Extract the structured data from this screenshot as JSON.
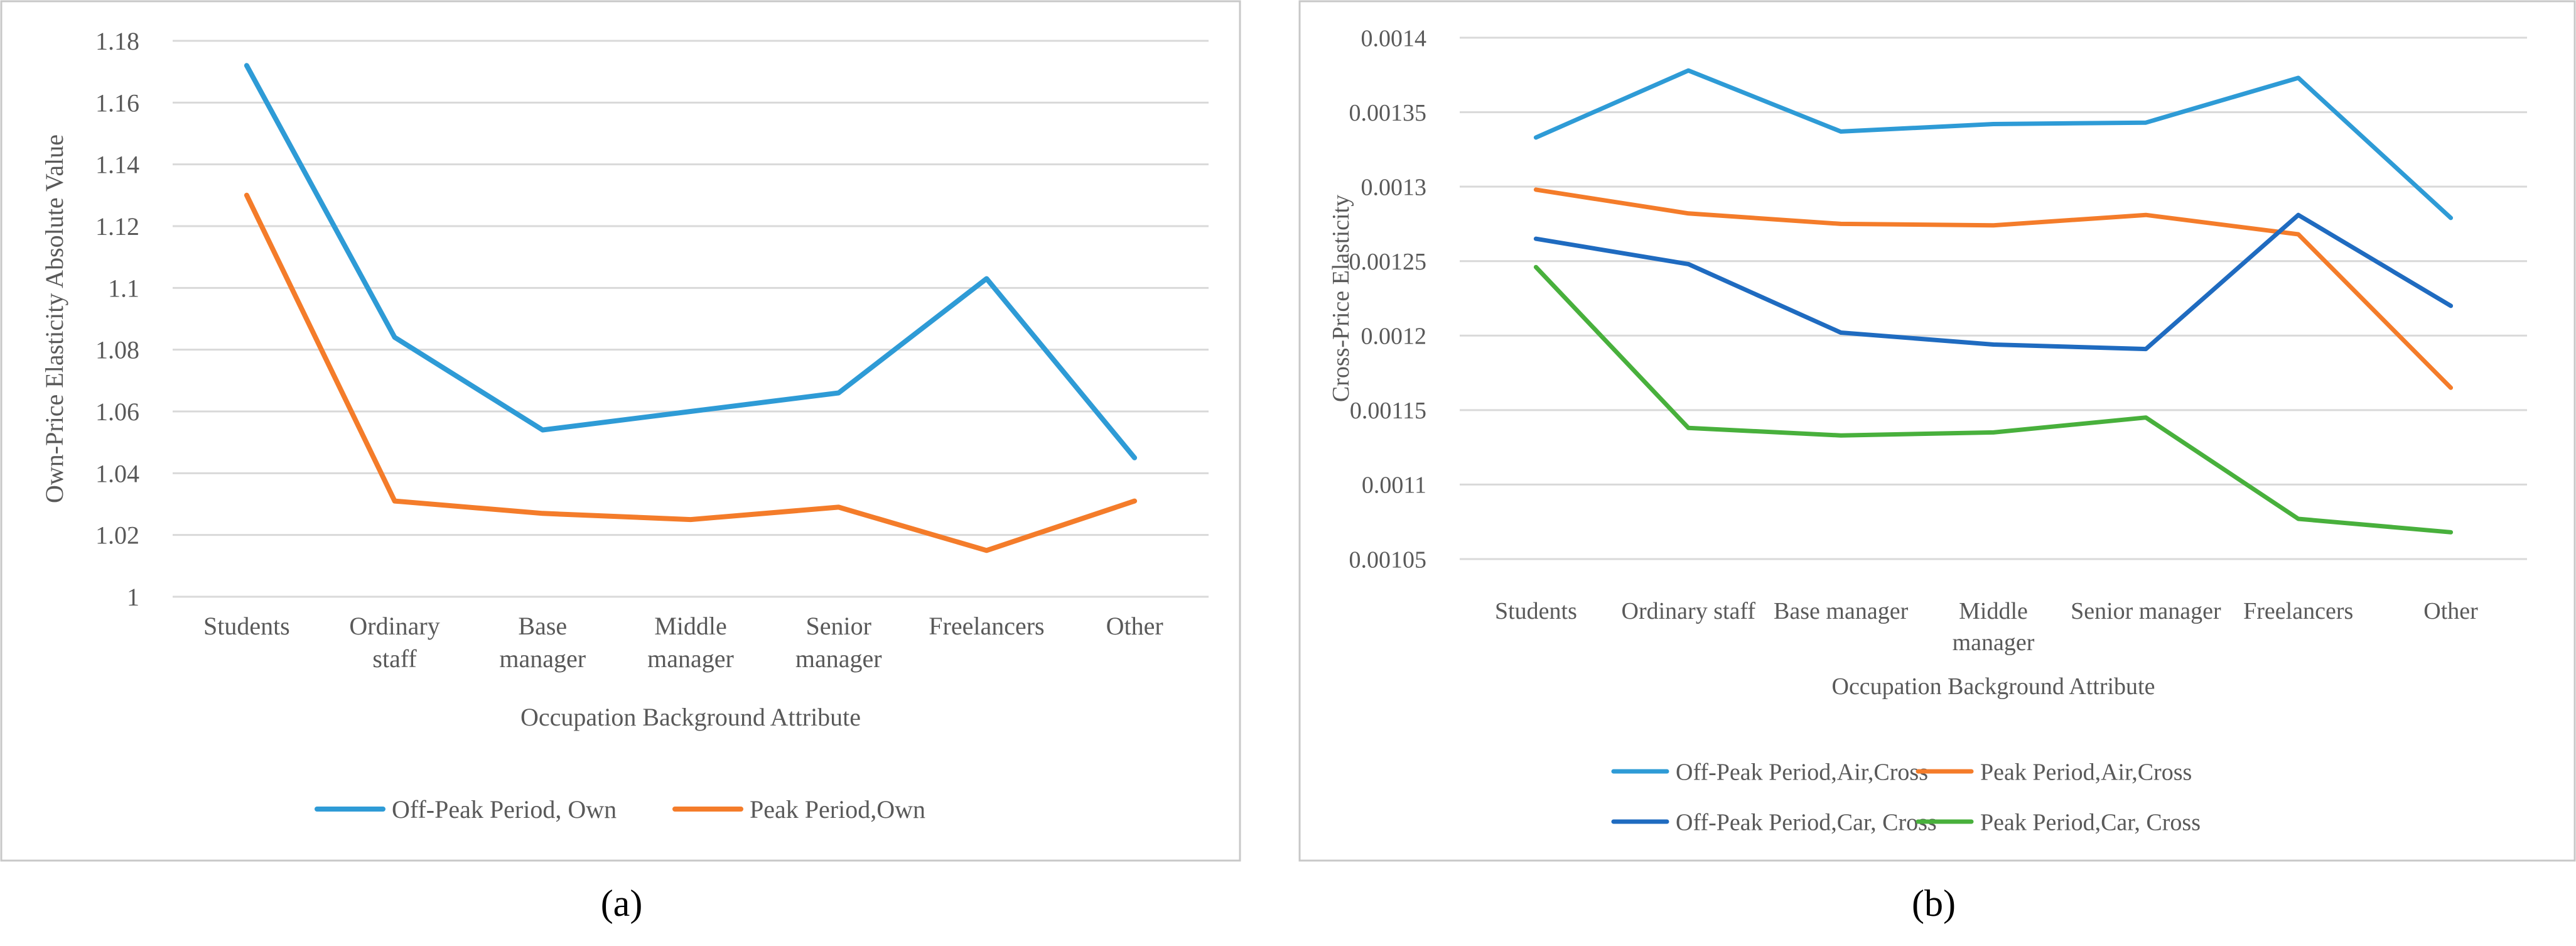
{
  "colors": {
    "off_peak_own": "#2E9BD6",
    "peak_own": "#F47C2A",
    "off_peak_car": "#1F6BC0",
    "peak_car": "#48B03C",
    "grid": "#D9D9D9",
    "frame": "#C8C8C8",
    "text": "#595959"
  },
  "chart_data": [
    {
      "type": "line",
      "panel_label": "(a)",
      "title": "",
      "xlabel": "Occupation Background Attribute",
      "ylabel": "Own-Price Elasticity Absolute Value",
      "categories": [
        [
          "Students"
        ],
        [
          "Ordinary",
          "staff"
        ],
        [
          "Base",
          "manager"
        ],
        [
          "Middle",
          "manager"
        ],
        [
          "Senior",
          "manager"
        ],
        [
          "Freelancers"
        ],
        [
          "Other"
        ]
      ],
      "ylim": [
        1,
        1.18
      ],
      "yticks": [
        1,
        1.02,
        1.04,
        1.06,
        1.08,
        1.1,
        1.12,
        1.14,
        1.16,
        1.18
      ],
      "ytick_labels": [
        "1",
        "1.02",
        "1.04",
        "1.06",
        "1.08",
        "1.1",
        "1.12",
        "1.14",
        "1.16",
        "1.18"
      ],
      "grid": true,
      "legend": "bottom",
      "series": [
        {
          "name": "Off-Peak Period, Own",
          "color_key": "off_peak_own",
          "values": [
            1.172,
            1.084,
            1.054,
            1.06,
            1.066,
            1.103,
            1.045
          ]
        },
        {
          "name": "Peak Period,Own",
          "color_key": "peak_own",
          "values": [
            1.13,
            1.031,
            1.027,
            1.025,
            1.029,
            1.015,
            1.031
          ]
        }
      ]
    },
    {
      "type": "line",
      "panel_label": "(b)",
      "title": "",
      "xlabel": "Occupation Background Attribute",
      "ylabel": "Cross-Price Elasticity",
      "categories": [
        [
          "Students"
        ],
        [
          "Ordinary staff"
        ],
        [
          "Base manager"
        ],
        [
          "Middle",
          "manager"
        ],
        [
          "Senior manager"
        ],
        [
          "Freelancers"
        ],
        [
          "Other"
        ]
      ],
      "ylim": [
        0.00105,
        0.0014
      ],
      "yticks": [
        0.00105,
        0.0011,
        0.00115,
        0.0012,
        0.00125,
        0.0013,
        0.00135,
        0.0014
      ],
      "ytick_labels": [
        "0.00105",
        "0.0011",
        "0.00115",
        "0.0012",
        "0.00125",
        "0.0013",
        "0.00135",
        "0.0014"
      ],
      "grid": true,
      "legend": "bottom",
      "series": [
        {
          "name": "Off-Peak Period,Air,Cross",
          "color_key": "off_peak_own",
          "values": [
            0.001333,
            0.001378,
            0.001337,
            0.001342,
            0.001343,
            0.001373,
            0.001279
          ]
        },
        {
          "name": "Peak Period,Air,Cross",
          "color_key": "peak_own",
          "values": [
            0.001298,
            0.001282,
            0.001275,
            0.001274,
            0.001281,
            0.001268,
            0.001165
          ]
        },
        {
          "name": "Off-Peak Period,Car, Cross",
          "color_key": "off_peak_car",
          "values": [
            0.001265,
            0.001248,
            0.001202,
            0.001194,
            0.001191,
            0.001281,
            0.00122
          ]
        },
        {
          "name": "Peak Period,Car, Cross",
          "color_key": "peak_car",
          "values": [
            0.001246,
            0.001138,
            0.001133,
            0.001135,
            0.001145,
            0.001077,
            0.001068
          ]
        }
      ]
    }
  ]
}
